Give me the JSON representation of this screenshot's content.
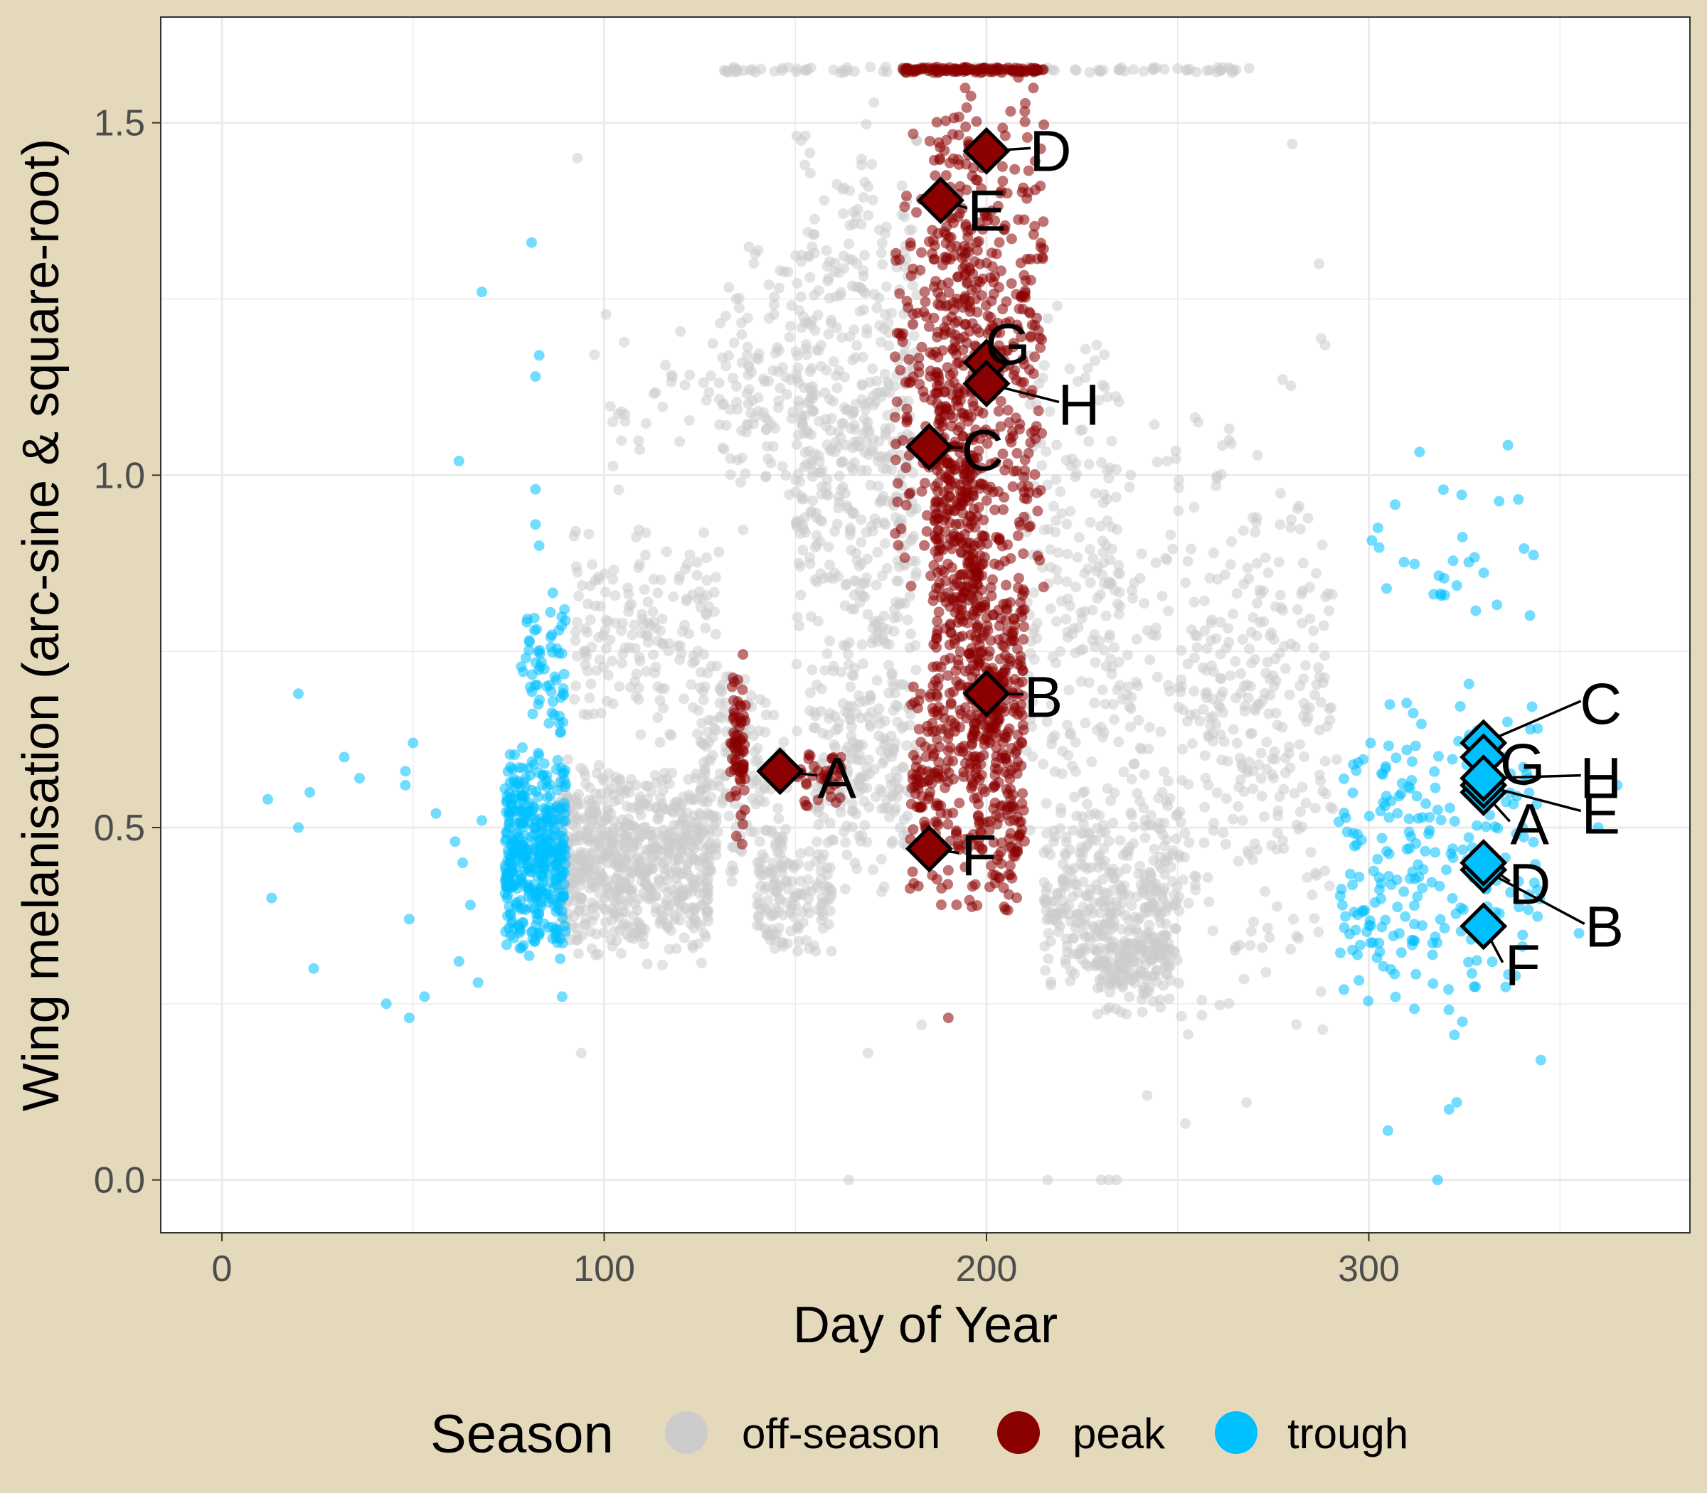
{
  "chart_data": {
    "type": "scatter",
    "xlabel": "Day of Year",
    "ylabel": "Wing melanisation (arc-sine & square-root)",
    "xlim": [
      -16,
      384
    ],
    "ylim": [
      -0.075,
      1.65
    ],
    "xticks": [
      0,
      100,
      200,
      300
    ],
    "xtick_labels": [
      "0",
      "100",
      "200",
      "300"
    ],
    "yticks": [
      0.0,
      0.5,
      1.0,
      1.5
    ],
    "ytick_labels": [
      "0.0",
      "0.5",
      "1.0",
      "1.5"
    ],
    "grid": true,
    "legend": {
      "title": "Season",
      "position": "bottom",
      "entries": [
        {
          "label": "off-season",
          "color": "#cccccc"
        },
        {
          "label": "peak",
          "color": "#8b0000"
        },
        {
          "label": "trough",
          "color": "#00bfff"
        }
      ]
    },
    "series": [
      {
        "name": "peak",
        "color": "#8b0000",
        "clusters": [
          {
            "x": [
              133,
              137
            ],
            "y": [
              0.45,
              0.78
            ],
            "n": 70
          },
          {
            "x": [
              150,
              162
            ],
            "y": [
              0.52,
              0.62
            ],
            "n": 40
          },
          {
            "x": [
              176,
              186
            ],
            "y": [
              0.8,
              1.5
            ],
            "n": 90
          },
          {
            "x": [
              180,
              188
            ],
            "y": [
              0.4,
              0.75
            ],
            "n": 80
          },
          {
            "x": [
              186,
              198
            ],
            "y": [
              0.35,
              1.6
            ],
            "n": 620
          },
          {
            "x": [
              196,
              210
            ],
            "y": [
              0.35,
              0.95
            ],
            "n": 340
          },
          {
            "x": [
              198,
              215
            ],
            "y": [
              0.8,
              1.6
            ],
            "n": 230
          },
          {
            "x": [
              178,
              215
            ],
            "y": [
              1.57,
              1.58
            ],
            "n": 120
          }
        ],
        "points": [
          {
            "x": 190,
            "y": 0.23
          }
        ]
      },
      {
        "name": "trough",
        "color": "#00bfff",
        "clusters": [
          {
            "x": [
              74,
              90
            ],
            "y": [
              0.3,
              0.62
            ],
            "n": 420
          },
          {
            "x": [
              78,
              90
            ],
            "y": [
              0.62,
              0.85
            ],
            "n": 60
          },
          {
            "x": [
              292,
              345
            ],
            "y": [
              0.2,
              0.72
            ],
            "n": 240
          },
          {
            "x": [
              300,
              345
            ],
            "y": [
              0.72,
              1.05
            ],
            "n": 30
          }
        ],
        "points": [
          {
            "x": 12,
            "y": 0.54
          },
          {
            "x": 13,
            "y": 0.4
          },
          {
            "x": 20,
            "y": 0.69
          },
          {
            "x": 20,
            "y": 0.5
          },
          {
            "x": 23,
            "y": 0.55
          },
          {
            "x": 24,
            "y": 0.3
          },
          {
            "x": 32,
            "y": 0.6
          },
          {
            "x": 36,
            "y": 0.57
          },
          {
            "x": 43,
            "y": 0.25
          },
          {
            "x": 48,
            "y": 0.58
          },
          {
            "x": 48,
            "y": 0.56
          },
          {
            "x": 49,
            "y": 0.37
          },
          {
            "x": 49,
            "y": 0.23
          },
          {
            "x": 50,
            "y": 0.62
          },
          {
            "x": 53,
            "y": 0.26
          },
          {
            "x": 56,
            "y": 0.52
          },
          {
            "x": 61,
            "y": 0.48
          },
          {
            "x": 62,
            "y": 0.31
          },
          {
            "x": 62,
            "y": 1.02
          },
          {
            "x": 63,
            "y": 0.45
          },
          {
            "x": 65,
            "y": 0.39
          },
          {
            "x": 67,
            "y": 0.28
          },
          {
            "x": 68,
            "y": 0.51
          },
          {
            "x": 68,
            "y": 1.26
          },
          {
            "x": 81,
            "y": 1.33
          },
          {
            "x": 82,
            "y": 1.14
          },
          {
            "x": 83,
            "y": 1.17
          },
          {
            "x": 82,
            "y": 0.98
          },
          {
            "x": 82,
            "y": 0.93
          },
          {
            "x": 83,
            "y": 0.9
          },
          {
            "x": 89,
            "y": 0.26
          },
          {
            "x": 345,
            "y": 0.17
          },
          {
            "x": 318,
            "y": 0.0
          },
          {
            "x": 305,
            "y": 0.07
          },
          {
            "x": 321,
            "y": 0.1
          },
          {
            "x": 323,
            "y": 0.11
          },
          {
            "x": 365,
            "y": 0.56
          },
          {
            "x": 360,
            "y": 0.5
          },
          {
            "x": 355,
            "y": 0.35
          }
        ]
      },
      {
        "name": "off-season",
        "color": "#cccccc",
        "clusters": [
          {
            "x": [
              88,
              128
            ],
            "y": [
              0.3,
              0.6
            ],
            "n": 700
          },
          {
            "x": [
              92,
              130
            ],
            "y": [
              0.6,
              0.95
            ],
            "n": 180
          },
          {
            "x": [
              95,
              140
            ],
            "y": [
              0.95,
              1.25
            ],
            "n": 40
          },
          {
            "x": [
              125,
              148
            ],
            "y": [
              0.4,
              0.75
            ],
            "n": 150
          },
          {
            "x": [
              130,
              155
            ],
            "y": [
              0.9,
              1.35
            ],
            "n": 120
          },
          {
            "x": [
              140,
              160
            ],
            "y": [
              0.3,
              0.5
            ],
            "n": 140
          },
          {
            "x": [
              150,
              182
            ],
            "y": [
              0.55,
              1.55
            ],
            "n": 520
          },
          {
            "x": [
              155,
              180
            ],
            "y": [
              0.4,
              0.75
            ],
            "n": 180
          },
          {
            "x": [
              210,
              235
            ],
            "y": [
              0.4,
              1.3
            ],
            "n": 200
          },
          {
            "x": [
              215,
              250
            ],
            "y": [
              0.25,
              0.55
            ],
            "n": 300
          },
          {
            "x": [
              228,
              248
            ],
            "y": [
              0.22,
              0.4
            ],
            "n": 150
          },
          {
            "x": [
              230,
              290
            ],
            "y": [
              0.15,
              1.2
            ],
            "n": 320
          },
          {
            "x": [
              250,
              292
            ],
            "y": [
              0.4,
              0.95
            ],
            "n": 120
          },
          {
            "x": [
              130,
              270
            ],
            "y": [
              1.57,
              1.58
            ],
            "n": 110
          }
        ],
        "points": [
          {
            "x": 94,
            "y": 0.18
          },
          {
            "x": 93,
            "y": 1.45
          },
          {
            "x": 164,
            "y": 0.0
          },
          {
            "x": 216,
            "y": 0.0
          },
          {
            "x": 230,
            "y": 0.0
          },
          {
            "x": 232,
            "y": 0.0
          },
          {
            "x": 234,
            "y": 0.0
          },
          {
            "x": 268,
            "y": 0.11
          },
          {
            "x": 252,
            "y": 0.08
          },
          {
            "x": 287,
            "y": 1.3
          },
          {
            "x": 280,
            "y": 1.47
          },
          {
            "x": 169,
            "y": 0.18
          },
          {
            "x": 183,
            "y": 0.22
          },
          {
            "x": 242,
            "y": 0.12
          }
        ]
      }
    ],
    "annotations": [
      {
        "season": "peak",
        "label": "A",
        "x": 146,
        "y": 0.58
      },
      {
        "season": "peak",
        "label": "B",
        "x": 200,
        "y": 0.69
      },
      {
        "season": "peak",
        "label": "C",
        "x": 185,
        "y": 1.04
      },
      {
        "season": "peak",
        "label": "D",
        "x": 200,
        "y": 1.46
      },
      {
        "season": "peak",
        "label": "E",
        "x": 188,
        "y": 1.39
      },
      {
        "season": "peak",
        "label": "F",
        "x": 185,
        "y": 0.47
      },
      {
        "season": "peak",
        "label": "G",
        "x": 200,
        "y": 1.16
      },
      {
        "season": "peak",
        "label": "H",
        "x": 200,
        "y": 1.13
      },
      {
        "season": "trough",
        "label": "A",
        "x": 330,
        "y": 0.55
      },
      {
        "season": "trough",
        "label": "B",
        "x": 330,
        "y": 0.44
      },
      {
        "season": "trough",
        "label": "C",
        "x": 330,
        "y": 0.62
      },
      {
        "season": "trough",
        "label": "D",
        "x": 330,
        "y": 0.45
      },
      {
        "season": "trough",
        "label": "E",
        "x": 330,
        "y": 0.56
      },
      {
        "season": "trough",
        "label": "F",
        "x": 330,
        "y": 0.36
      },
      {
        "season": "trough",
        "label": "G",
        "x": 330,
        "y": 0.6
      },
      {
        "season": "trough",
        "label": "H",
        "x": 330,
        "y": 0.57
      }
    ]
  }
}
